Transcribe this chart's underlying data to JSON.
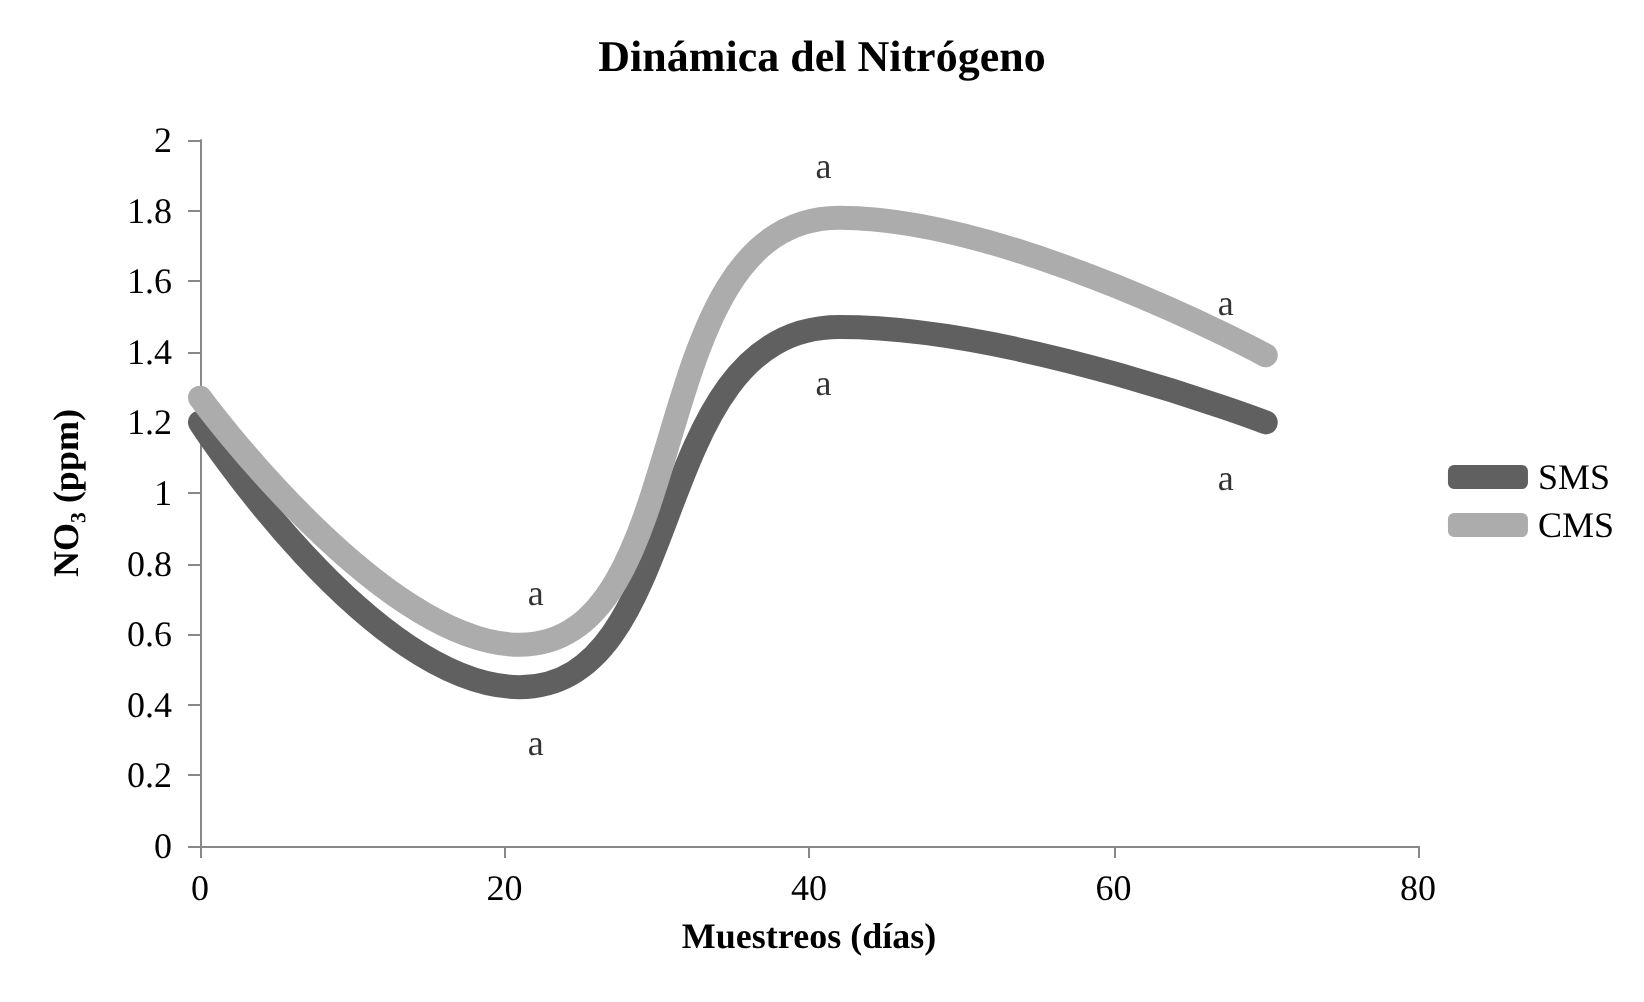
{
  "chart_data": {
    "type": "line",
    "title": "Dinámica del Nitrógeno",
    "xlabel": "Muestreos (días)",
    "ylabel": "NO₃ (ppm)",
    "x": [
      0,
      21,
      42,
      70
    ],
    "series": [
      {
        "name": "SMS",
        "color": "#606060",
        "values": [
          1.2,
          0.45,
          1.47,
          1.2
        ]
      },
      {
        "name": "CMS",
        "color": "#acacac",
        "values": [
          1.27,
          0.57,
          1.78,
          1.39
        ]
      }
    ],
    "xlim": [
      0,
      80
    ],
    "xticks": [
      0,
      20,
      40,
      60,
      80
    ],
    "ylim": [
      0,
      2
    ],
    "yticks": [
      0,
      0.2,
      0.4,
      0.6,
      0.8,
      1,
      1.2,
      1.4,
      1.6,
      1.8,
      2
    ],
    "grid": false,
    "legend": "right",
    "marker": "none",
    "line_style": "solid",
    "annotations": [
      {
        "text": "a",
        "x": 21,
        "y": 0.45
      },
      {
        "text": "a",
        "x": 21,
        "y": 0.57
      },
      {
        "text": "a",
        "x": 42,
        "y": 1.78
      },
      {
        "text": "a",
        "x": 42,
        "y": 1.47
      },
      {
        "text": "a",
        "x": 70,
        "y": 1.39
      },
      {
        "text": "a",
        "x": 70,
        "y": 1.2
      }
    ]
  }
}
